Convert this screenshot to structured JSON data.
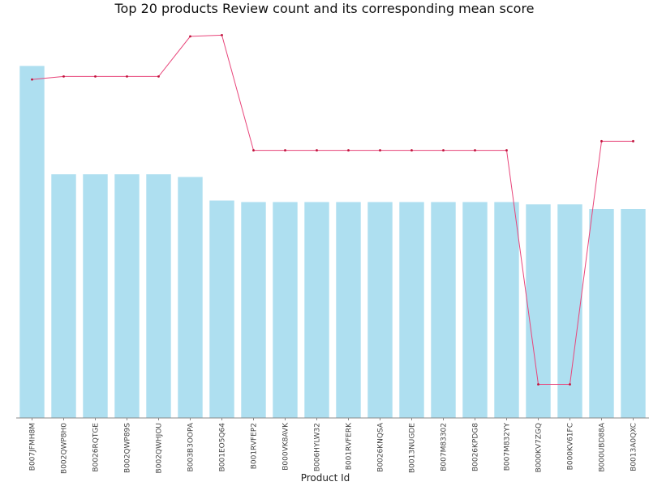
{
  "chart_data": {
    "type": "bar",
    "title": "Top 20 products Review count and its corresponding mean score",
    "xlabel": "Product Id",
    "ylabel": "",
    "categories": [
      "B007JFMH8M",
      "B002QWP8H0",
      "B0026RQTGE",
      "B002QWP89S",
      "B002QWHJOU",
      "B003B3OOPA",
      "B001EO5Q64",
      "B001RVFEP2",
      "B000VK8AVK",
      "B006HYLW32",
      "B001RVFERK",
      "B0026KNQSA",
      "B0013NUGDE",
      "B007M83302",
      "B0026KPDG8",
      "B007M832YY",
      "B000KV7ZGQ",
      "B000KV61FC",
      "B000UBD88A",
      "B0013A0QXC"
    ],
    "series": [
      {
        "name": "Review count",
        "kind": "bar",
        "color": "#aedff0",
        "values": [
          913,
          632,
          632,
          632,
          632,
          625,
          564,
          560,
          560,
          560,
          560,
          560,
          560,
          560,
          560,
          560,
          554,
          554,
          542,
          542
        ]
      },
      {
        "name": "Mean score",
        "kind": "line",
        "color": "#e8457a",
        "values": [
          4.585,
          4.595,
          4.595,
          4.595,
          4.595,
          4.727,
          4.731,
          4.352,
          4.352,
          4.352,
          4.352,
          4.352,
          4.352,
          4.352,
          4.352,
          4.352,
          3.582,
          3.582,
          4.382,
          4.382
        ]
      }
    ],
    "bar_ylim": [
      0,
      1000
    ],
    "line_ylim": [
      3.53,
      4.74
    ],
    "grid": false,
    "y_ticks_visible": false
  }
}
